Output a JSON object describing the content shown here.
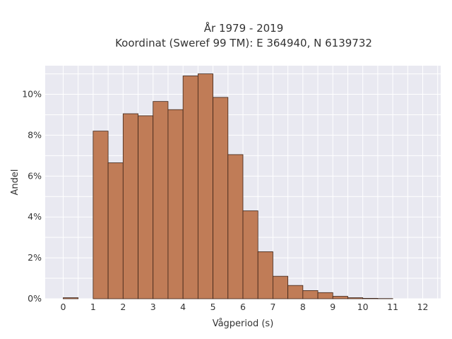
{
  "chart_data": {
    "type": "bar",
    "title_line1": "År 1979 - 2019",
    "title_line2": "Koordinat (Sweref 99 TM): E 364940, N 6139732",
    "xlabel": "Vågperiod (s)",
    "ylabel": "Andel",
    "bin_width": 0.5,
    "bins": [
      {
        "x": 0.0,
        "value": 0.05
      },
      {
        "x": 1.0,
        "value": 8.2
      },
      {
        "x": 1.5,
        "value": 6.65
      },
      {
        "x": 2.0,
        "value": 9.05
      },
      {
        "x": 2.5,
        "value": 8.95
      },
      {
        "x": 3.0,
        "value": 9.65
      },
      {
        "x": 3.5,
        "value": 9.25
      },
      {
        "x": 4.0,
        "value": 10.9
      },
      {
        "x": 4.5,
        "value": 11.0
      },
      {
        "x": 5.0,
        "value": 9.85
      },
      {
        "x": 5.5,
        "value": 7.05
      },
      {
        "x": 6.0,
        "value": 4.3
      },
      {
        "x": 6.5,
        "value": 2.3
      },
      {
        "x": 7.0,
        "value": 1.1
      },
      {
        "x": 7.5,
        "value": 0.65
      },
      {
        "x": 8.0,
        "value": 0.4
      },
      {
        "x": 8.5,
        "value": 0.3
      },
      {
        "x": 9.0,
        "value": 0.12
      },
      {
        "x": 9.5,
        "value": 0.05
      },
      {
        "x": 10.0,
        "value": 0.02
      },
      {
        "x": 10.5,
        "value": 0.01
      }
    ],
    "xlim": [
      -0.6,
      12.6
    ],
    "ylim": [
      0,
      11.4
    ],
    "xticks": [
      0,
      1,
      2,
      3,
      4,
      5,
      6,
      7,
      8,
      9,
      10,
      11,
      12
    ],
    "yticks": [
      0,
      2,
      4,
      6,
      8,
      10
    ],
    "ytick_suffix": "%",
    "grid": true,
    "colors": {
      "bar_fill": "#c07c57",
      "bar_edge": "#3d2418",
      "plot_bg": "#e9e9f1",
      "grid": "#ffffff"
    }
  }
}
